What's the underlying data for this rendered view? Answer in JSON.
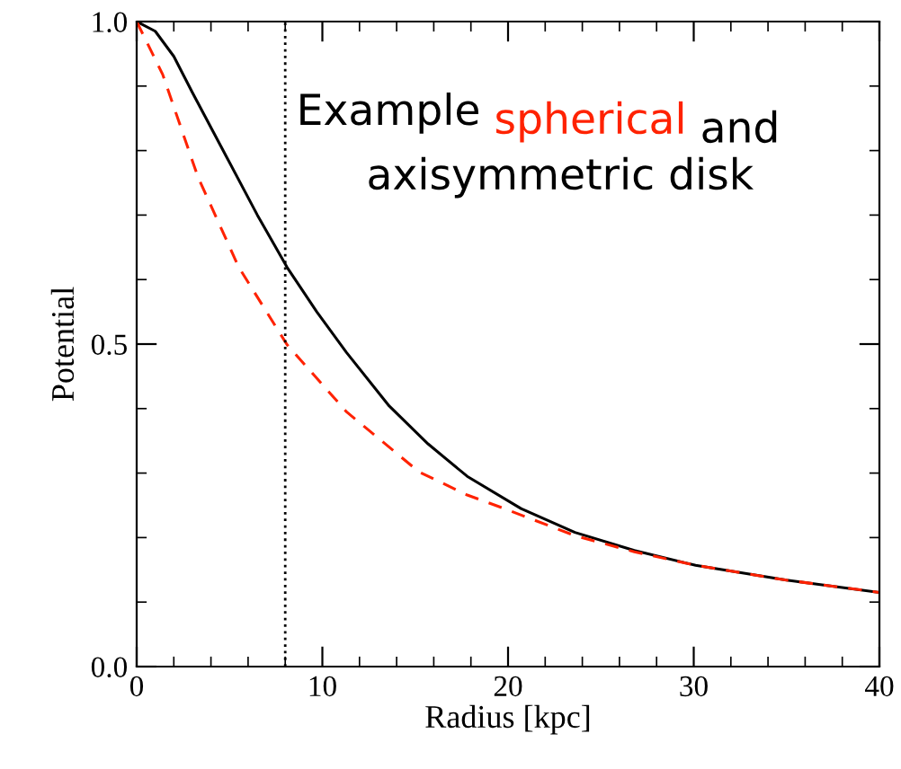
{
  "chart_data": {
    "type": "line",
    "xlabel": "Radius [kpc]",
    "ylabel": "Potential",
    "xlim": [
      0,
      40
    ],
    "ylim": [
      0,
      1
    ],
    "xticks": [
      0,
      10,
      20,
      30,
      40
    ],
    "yticks": [
      {
        "value": 0,
        "label": "0.0"
      },
      {
        "value": 0.5,
        "label": "0.5"
      },
      {
        "value": 1,
        "label": "1.0"
      }
    ],
    "series": [
      {
        "color": "#000000",
        "line_style": "solid",
        "x": [
          0,
          1,
          2,
          3,
          4.9,
          6.5,
          8.1,
          9.7,
          11.3,
          13.6,
          15.7,
          17.8,
          20.7,
          23.6,
          26.8,
          30.1,
          35,
          40
        ],
        "values": [
          1.0,
          0.985,
          0.946,
          0.89,
          0.787,
          0.7,
          0.619,
          0.55,
          0.487,
          0.404,
          0.345,
          0.295,
          0.245,
          0.208,
          0.18,
          0.157,
          0.134,
          0.115
        ]
      },
      {
        "color": "#ff2200",
        "line_style": "dashed",
        "x": [
          0,
          1.4,
          3.3,
          5.5,
          8.1,
          11.3,
          15.2,
          17.8,
          19.7,
          23.6,
          26.8,
          30.1,
          35,
          40
        ],
        "values": [
          1.0,
          0.918,
          0.759,
          0.619,
          0.499,
          0.395,
          0.302,
          0.266,
          0.246,
          0.203,
          0.178,
          0.157,
          0.134,
          0.115
        ]
      }
    ],
    "ref_lines": [
      {
        "axis": "x",
        "value": 8,
        "color": "#000000",
        "line_style": "dotted"
      }
    ],
    "annotations": [
      "Example",
      "spherical",
      "and",
      "axisymmetric disk"
    ],
    "grid": false,
    "legend": false
  }
}
